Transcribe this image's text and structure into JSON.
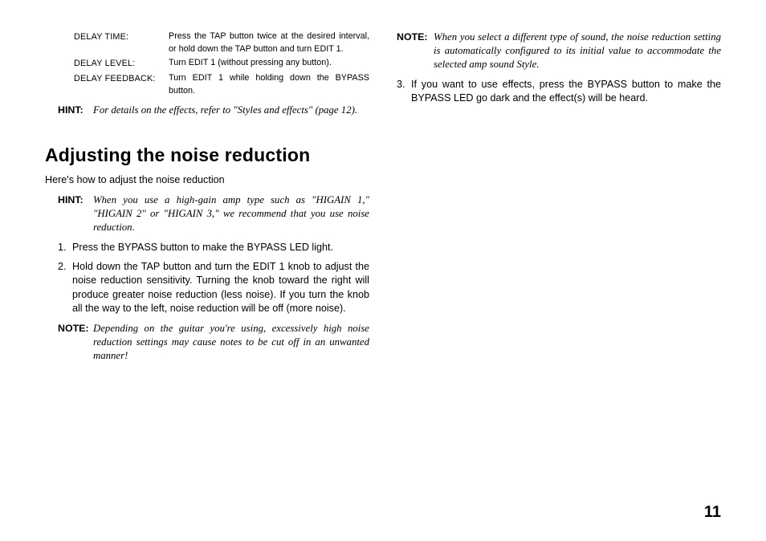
{
  "page_number": "11",
  "left": {
    "defs": [
      {
        "label": "DELAY TIME:",
        "val": "Press the TAP button twice at the desired interval, or hold down the TAP button and turn EDIT 1."
      },
      {
        "label": "DELAY LEVEL:",
        "val": "Turn EDIT 1 (without pressing any button)."
      },
      {
        "label": "DELAY FEEDBACK:",
        "val": "Turn EDIT 1 while holding down the BYPASS button."
      }
    ],
    "hint1": {
      "label": "HINT:",
      "body": "For details on the effects, refer to \"Styles and effects\" (page 12)."
    },
    "heading": "Adjusting the noise reduction",
    "lead": "Here's how to adjust the noise reduction",
    "hint2": {
      "label": "HINT:",
      "body": "When you use a high-gain amp type such as \"HIGAIN 1,\" \"HIGAIN 2\" or \"HIGAIN 3,\" we recommend that you use noise reduction."
    },
    "steps": [
      {
        "num": "1.",
        "body": "Press the BYPASS button to make the BYPASS LED light."
      },
      {
        "num": "2.",
        "body": "Hold down the TAP button and turn the EDIT 1 knob to adjust the noise reduction sensitivity. Turning the knob toward the right will produce greater noise reduction (less noise). If you turn the knob all the way to the left, noise reduction will be off (more noise)."
      }
    ],
    "note": {
      "label": "NOTE:",
      "body": "Depending on the guitar you're using, excessively high noise reduction settings may cause notes to be cut off in an unwanted manner!"
    }
  },
  "right": {
    "note": {
      "label": "NOTE:",
      "body": "When you select a different type of sound, the noise reduction setting is automatically configured to its initial value to accommodate the selected amp sound Style."
    },
    "steps": [
      {
        "num": "3.",
        "body": "If you want to use effects, press the BYPASS button to make the BYPASS LED go dark and the effect(s) will be heard."
      }
    ]
  }
}
